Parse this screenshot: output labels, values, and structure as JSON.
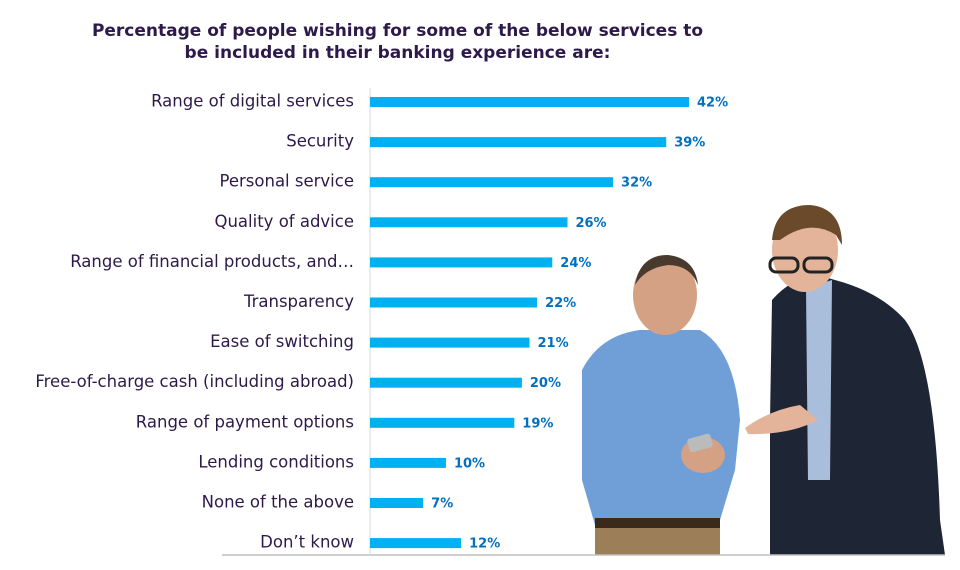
{
  "chart_data": {
    "type": "bar",
    "orientation": "horizontal",
    "title": "Percentage of people wishing for some of the below services to be included in their banking experience are:",
    "categories": [
      "Range of digital services",
      "Security",
      "Personal service",
      "Quality of advice",
      "Range of financial products, and…",
      "Transparency",
      "Ease of switching",
      "Free-of-charge cash (including abroad)",
      "Range of payment options",
      "Lending conditions",
      "None of the above",
      "Don’t know"
    ],
    "values": [
      42,
      39,
      32,
      26,
      24,
      22,
      21,
      20,
      19,
      10,
      7,
      12
    ],
    "value_labels": [
      "42%",
      "39%",
      "32%",
      "26%",
      "24%",
      "22%",
      "21%",
      "20%",
      "19%",
      "10%",
      "7%",
      "12%"
    ],
    "color": "#00b0f0"
  }
}
